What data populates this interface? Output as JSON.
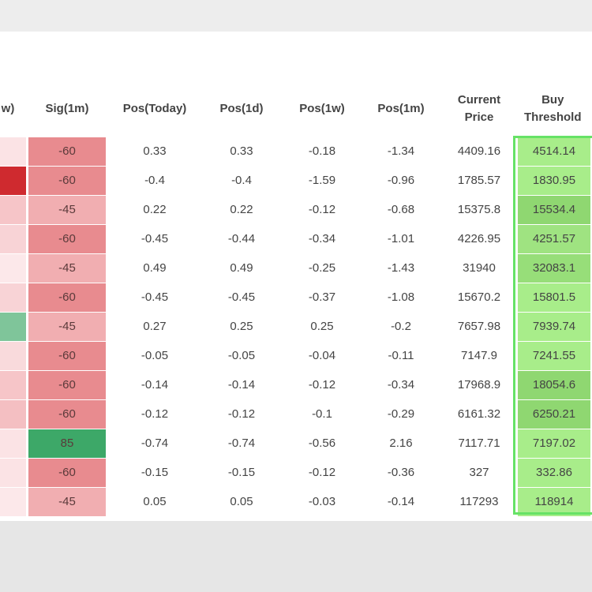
{
  "table": {
    "headers": {
      "sig1w": "w)",
      "sig1m": "Sig(1m)",
      "pos_today": "Pos(Today)",
      "pos_1d": "Pos(1d)",
      "pos_1w": "Pos(1w)",
      "pos_1m": "Pos(1m)",
      "current_price": "Current\nPrice",
      "buy_threshold": "Buy\nThreshold"
    },
    "rows": [
      {
        "sig1w_color": "#fbe3e5",
        "sig1m": "-60",
        "sig1m_color": "#e88b8f",
        "pos_today": "0.33",
        "pos_1d": "0.33",
        "pos_1w": "-0.18",
        "pos_1m": "-1.34",
        "current_price": "4409.16",
        "buy_threshold": "4514.14",
        "buy_color": "#a8ed8a"
      },
      {
        "sig1w_color": "#cf2a2f",
        "sig1m": "-60",
        "sig1m_color": "#e88b8f",
        "pos_today": "-0.4",
        "pos_1d": "-0.4",
        "pos_1w": "-1.59",
        "pos_1m": "-0.96",
        "current_price": "1785.57",
        "buy_threshold": "1830.95",
        "buy_color": "#a8ed8a"
      },
      {
        "sig1w_color": "#f6c5c8",
        "sig1m": "-45",
        "sig1m_color": "#f1aeb1",
        "pos_today": "0.22",
        "pos_1d": "0.22",
        "pos_1w": "-0.12",
        "pos_1m": "-0.68",
        "current_price": "15375.8",
        "buy_threshold": "15534.4",
        "buy_color": "#8fd771"
      },
      {
        "sig1w_color": "#f8d3d6",
        "sig1m": "-60",
        "sig1m_color": "#e88b8f",
        "pos_today": "-0.45",
        "pos_1d": "-0.44",
        "pos_1w": "-0.34",
        "pos_1m": "-1.01",
        "current_price": "4226.95",
        "buy_threshold": "4251.57",
        "buy_color": "#9fe381"
      },
      {
        "sig1w_color": "#fce8ea",
        "sig1m": "-45",
        "sig1m_color": "#f1aeb1",
        "pos_today": "0.49",
        "pos_1d": "0.49",
        "pos_1w": "-0.25",
        "pos_1m": "-1.43",
        "current_price": "31940",
        "buy_threshold": "32083.1",
        "buy_color": "#97de79"
      },
      {
        "sig1w_color": "#f8d3d6",
        "sig1m": "-60",
        "sig1m_color": "#e88b8f",
        "pos_today": "-0.45",
        "pos_1d": "-0.45",
        "pos_1w": "-0.37",
        "pos_1m": "-1.08",
        "current_price": "15670.2",
        "buy_threshold": "15801.5",
        "buy_color": "#a8ed8a"
      },
      {
        "sig1w_color": "#7fc59a",
        "sig1m": "-45",
        "sig1m_color": "#f1aeb1",
        "pos_today": "0.27",
        "pos_1d": "0.25",
        "pos_1w": "0.25",
        "pos_1m": "-0.2",
        "current_price": "7657.98",
        "buy_threshold": "7939.74",
        "buy_color": "#a8ed8a"
      },
      {
        "sig1w_color": "#f9dadc",
        "sig1m": "-60",
        "sig1m_color": "#e88b8f",
        "pos_today": "-0.05",
        "pos_1d": "-0.05",
        "pos_1w": "-0.04",
        "pos_1m": "-0.11",
        "current_price": "7147.9",
        "buy_threshold": "7241.55",
        "buy_color": "#a8ed8a"
      },
      {
        "sig1w_color": "#f6c5c8",
        "sig1m": "-60",
        "sig1m_color": "#e88b8f",
        "pos_today": "-0.14",
        "pos_1d": "-0.14",
        "pos_1w": "-0.12",
        "pos_1m": "-0.34",
        "current_price": "17968.9",
        "buy_threshold": "18054.6",
        "buy_color": "#8fd771"
      },
      {
        "sig1w_color": "#f4bfc2",
        "sig1m": "-60",
        "sig1m_color": "#e88b8f",
        "pos_today": "-0.12",
        "pos_1d": "-0.12",
        "pos_1w": "-0.1",
        "pos_1m": "-0.29",
        "current_price": "6161.32",
        "buy_threshold": "6250.21",
        "buy_color": "#8fd771"
      },
      {
        "sig1w_color": "#fbe3e5",
        "sig1m": "85",
        "sig1m_color": "#3da868",
        "pos_today": "-0.74",
        "pos_1d": "-0.74",
        "pos_1w": "-0.56",
        "pos_1m": "2.16",
        "current_price": "7117.71",
        "buy_threshold": "7197.02",
        "buy_color": "#a8ed8a"
      },
      {
        "sig1w_color": "#fbe3e5",
        "sig1m": "-60",
        "sig1m_color": "#e88b8f",
        "pos_today": "-0.15",
        "pos_1d": "-0.15",
        "pos_1w": "-0.12",
        "pos_1m": "-0.36",
        "current_price": "327",
        "buy_threshold": "332.86",
        "buy_color": "#a8ed8a"
      },
      {
        "sig1w_color": "#fce8ea",
        "sig1m": "-45",
        "sig1m_color": "#f1aeb1",
        "pos_today": "0.05",
        "pos_1d": "0.05",
        "pos_1w": "-0.03",
        "pos_1m": "-0.14",
        "current_price": "117293",
        "buy_threshold": "118914",
        "buy_color": "#a8ed8a"
      }
    ]
  }
}
